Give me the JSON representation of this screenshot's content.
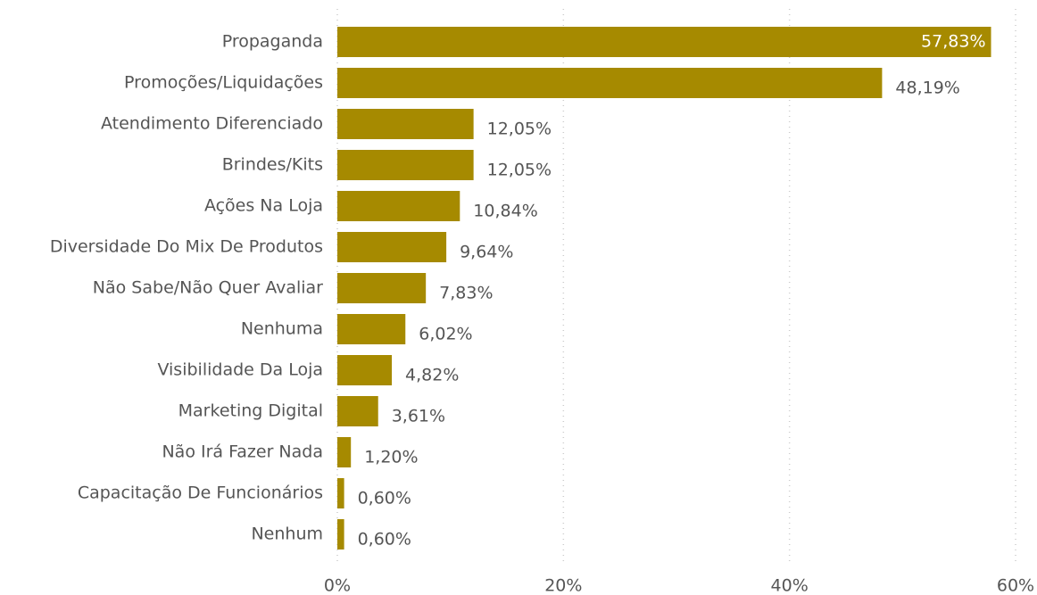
{
  "chart_data": {
    "type": "bar",
    "orientation": "horizontal",
    "categories": [
      "Propaganda",
      "Promoções/Liquidações",
      "Atendimento Diferenciado",
      "Brindes/Kits",
      "Ações Na Loja",
      "Diversidade Do Mix De Produtos",
      "Não Sabe/Não Quer Avaliar",
      "Nenhuma",
      "Visibilidade Da Loja",
      "Marketing Digital",
      "Não Irá Fazer Nada",
      "Capacitação De Funcionários",
      "Nenhum"
    ],
    "values": [
      57.83,
      48.19,
      12.05,
      12.05,
      10.84,
      9.64,
      7.83,
      6.02,
      4.82,
      3.61,
      1.2,
      0.6,
      0.6
    ],
    "value_labels": [
      "57,83%",
      "48,19%",
      "12,05%",
      "12,05%",
      "10,84%",
      "9,64%",
      "7,83%",
      "6,02%",
      "4,82%",
      "3,61%",
      "1,20%",
      "0,60%",
      "0,60%"
    ],
    "color": "#a68a00",
    "xlim": [
      0,
      60
    ],
    "xticks": [
      {
        "value": 0,
        "label": "0%"
      },
      {
        "value": 20,
        "label": "20%"
      },
      {
        "value": 40,
        "label": "40%"
      },
      {
        "value": 60,
        "label": "60%"
      }
    ],
    "grid": true
  }
}
